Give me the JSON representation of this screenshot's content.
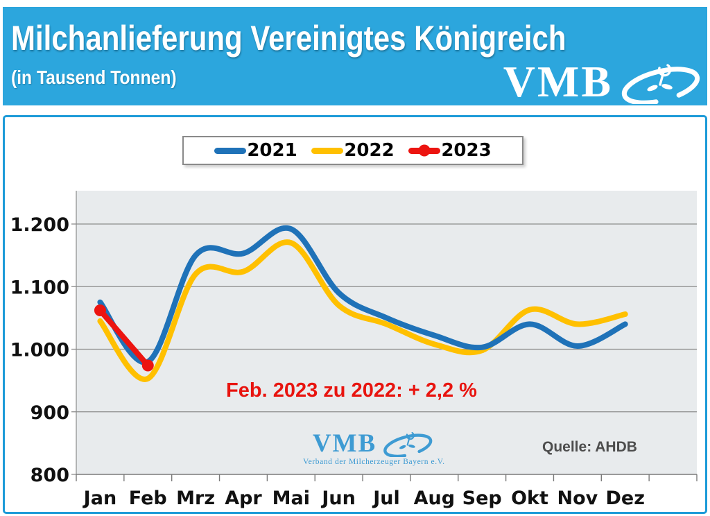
{
  "header": {
    "title": "Milchanlieferung Vereinigtes Königreich",
    "subtitle": "(in Tausend Tonnen)",
    "logo_text": "VMB",
    "bg_color": "#2CA6DD"
  },
  "annotation": {
    "text": "Feb. 2023 zu 2022: + 2,2 %",
    "color": "#E8140F"
  },
  "watermark": {
    "logo_text": "VMB",
    "subtext": "Verband der Milcherzeuger Bayern e.V.",
    "color": "#3E9BD3"
  },
  "source": {
    "text": "Quelle: AHDB"
  },
  "chart_data": {
    "type": "line",
    "title": "Milchanlieferung Vereinigtes Königreich",
    "subtitle": "(in Tausend Tonnen)",
    "unit": "Tausend Tonnen",
    "categories": [
      "Jan",
      "Feb",
      "Mrz",
      "Apr",
      "Mai",
      "Jun",
      "Jul",
      "Aug",
      "Sep",
      "Okt",
      "Nov",
      "Dez"
    ],
    "series": [
      {
        "name": "2021",
        "color": "#1F72B8",
        "values": [
          1075,
          980,
          1150,
          1153,
          1192,
          1090,
          1050,
          1022,
          1003,
          1040,
          1005,
          1040
        ]
      },
      {
        "name": "2022",
        "color": "#FFC000",
        "values": [
          1045,
          953,
          1120,
          1124,
          1170,
          1070,
          1040,
          1008,
          998,
          1063,
          1040,
          1056
        ]
      },
      {
        "name": "2023",
        "color": "#EC1410",
        "markers": true,
        "values": [
          1062,
          974
        ]
      }
    ],
    "ylim": [
      800,
      1255
    ],
    "yticks": [
      800,
      900,
      1000,
      1100,
      1200
    ],
    "ytick_labels": [
      "800",
      "900",
      "1.000",
      "1.100",
      "1.200"
    ],
    "grid": true,
    "legend_position": "top",
    "plot_bg": "#E8EBED",
    "grid_color": "#8C8C8C",
    "annotation": "Feb. 2023 zu 2022: + 2,2 %",
    "source": "Quelle: AHDB"
  }
}
